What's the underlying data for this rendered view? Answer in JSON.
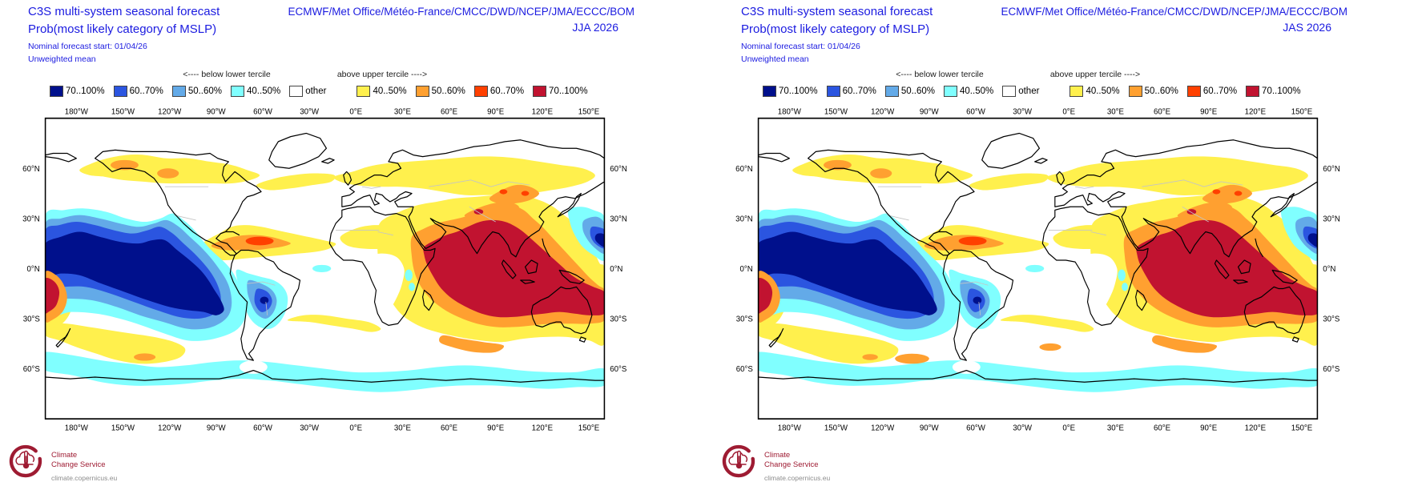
{
  "shared": {
    "title1": "C3S multi-system seasonal forecast",
    "title2": "Prob(most likely category of MSLP)",
    "models": "ECMWF/Met Office/Météo-France/CMCC/DWD/NCEP/JMA/ECCC/BOM",
    "start": "Nominal forecast start: 01/04/26",
    "weighting": "Unweighted mean",
    "legend": {
      "below_header": "<---- below lower tercile",
      "above_header": "above upper tercile ---->",
      "bins": [
        {
          "label": "70..100%",
          "color": "#00108c",
          "side": "below"
        },
        {
          "label": "60..70%",
          "color": "#2b55e0",
          "side": "below"
        },
        {
          "label": "50..60%",
          "color": "#63aae8",
          "side": "below"
        },
        {
          "label": "40..50%",
          "color": "#80ffff",
          "side": "below"
        },
        {
          "label": "other",
          "color": "#ffffff",
          "side": "none"
        },
        {
          "label": "40..50%",
          "color": "#fff04d",
          "side": "above"
        },
        {
          "label": "50..60%",
          "color": "#ffa030",
          "side": "above"
        },
        {
          "label": "60..70%",
          "color": "#ff4000",
          "side": "above"
        },
        {
          "label": "70..100%",
          "color": "#c11330",
          "side": "above"
        }
      ]
    },
    "axis": {
      "lon_ticks": [
        "180°W",
        "150°W",
        "120°W",
        "90°W",
        "60°W",
        "30°W",
        "0°E",
        "30°E",
        "60°E",
        "90°E",
        "120°E",
        "150°E"
      ],
      "lat_ticks": [
        "60°N",
        "30°N",
        "0°N",
        "30°S",
        "60°S"
      ]
    },
    "footer": {
      "line1": "Climate",
      "line2": "Change Service",
      "url": "climate.copernicus.eu"
    }
  },
  "panels": [
    {
      "period": "JJA 2026"
    },
    {
      "period": "JAS 2026"
    }
  ],
  "colors": {
    "header_blue": "#1b1be0",
    "logo_maroon": "#9e1b32",
    "url_gray": "#8c8c8c"
  },
  "chart_data": [
    {
      "type": "heatmap",
      "subtype": "filled-contour world map, equirectangular, centered ~20°W (160°E to 160°E)",
      "title": "C3S multi-system seasonal forecast — Prob(most likely category of MSLP)",
      "season": "JJA 2026",
      "forecast_start": "01/04/26",
      "weighting": "Unweighted mean",
      "legend_bins_below_lower_tercile": [
        "70..100%",
        "60..70%",
        "50..60%",
        "40..50%"
      ],
      "legend_bins_above_upper_tercile": [
        "40..50%",
        "50..60%",
        "60..70%",
        "70..100%"
      ],
      "lon_ticks": [
        "180°W",
        "150°W",
        "120°W",
        "90°W",
        "60°W",
        "30°W",
        "0°E",
        "30°E",
        "60°E",
        "90°E",
        "120°E",
        "150°E"
      ],
      "lat_ticks": [
        "60°N",
        "30°N",
        "0°N",
        "30°S",
        "60°S"
      ],
      "regions": [
        {
          "area": "Tropical eastern/central Pacific",
          "extent": "~180°W–80°W, 20°N–15°S (tongue to 30°S along Peru)",
          "category": "below lower tercile",
          "probability": "70..100% core, ringed by 60..70%, 50..60%, 40..50%"
        },
        {
          "area": "Western subtropical Pacific wedge east of Japan to 160°E edge",
          "category": "below lower tercile",
          "probability": "40..50% to 70..100% at edge"
        },
        {
          "area": "Central South America (Paraguay / N Argentina)",
          "category": "below lower tercile",
          "probability": "up to 60..70% core"
        },
        {
          "area": "Indian Ocean, S & SE Asia, Maritime Continent, N Australia, W tropical Pacific",
          "extent": "~45°E–165°E, 25°N–30°S",
          "category": "above upper tercile",
          "probability": "70..100% core with 60..70% and 50..60% rings"
        },
        {
          "area": "Middle East, Tibetan Plateau, Mongolia / NE China",
          "category": "above upper tercile",
          "probability": "50..70%"
        },
        {
          "area": "Caribbean & tropical North Atlantic (10°N–25°N)",
          "category": "above upper tercile",
          "probability": "50..70% core in 40..50% band"
        },
        {
          "area": "High-latitude North America (Alaska–Canada) & N Eurasia",
          "category": "above upper tercile",
          "probability": "40..50% with local 50..60%"
        },
        {
          "area": "North Atlantic ~50°N–58°N band into Europe",
          "category": "above upper tercile",
          "probability": "40..50%"
        },
        {
          "area": "Southern mid-latitude band ~32°S–50°S (S Pacific, S Atlantic, S Indian)",
          "category": "above upper tercile",
          "probability": "40..50% with 50..60% patches (S Indian ~60–100°E, S Pacific ~135°W)"
        },
        {
          "area": "Circumpolar Southern Ocean band ~52°S–70°S",
          "category": "below lower tercile",
          "probability": "40..50%"
        },
        {
          "area": "Equatorial Atlantic & East Africa small spots",
          "category": "below lower tercile",
          "probability": "40..50%"
        }
      ]
    },
    {
      "type": "heatmap",
      "subtype": "filled-contour world map, equirectangular, centered ~20°W (160°E to 160°E)",
      "title": "C3S multi-system seasonal forecast — Prob(most likely category of MSLP)",
      "season": "JAS 2026",
      "forecast_start": "01/04/26",
      "weighting": "Unweighted mean",
      "legend_bins_below_lower_tercile": [
        "70..100%",
        "60..70%",
        "50..60%",
        "40..50%"
      ],
      "legend_bins_above_upper_tercile": [
        "40..50%",
        "50..60%",
        "60..70%",
        "70..100%"
      ],
      "lon_ticks": [
        "180°W",
        "150°W",
        "120°W",
        "90°W",
        "60°W",
        "30°W",
        "0°E",
        "30°E",
        "60°E",
        "90°E",
        "120°E",
        "150°E"
      ],
      "lat_ticks": [
        "60°N",
        "30°N",
        "0°N",
        "30°S",
        "60°S"
      ],
      "regions": [
        {
          "area": "Same large-scale pattern as JJA 2026 panel",
          "note": "nearly identical tercile-probability field"
        },
        {
          "area": "SE Pacific south of South America (~110°W–90°W, 50°S–58°S)",
          "category": "above upper tercile",
          "probability": "50..60% patch (stronger than JJA)"
        },
        {
          "area": "Mid South Atlantic ~45°S–50°S",
          "category": "above upper tercile",
          "probability": "50..60% patch"
        }
      ]
    }
  ]
}
